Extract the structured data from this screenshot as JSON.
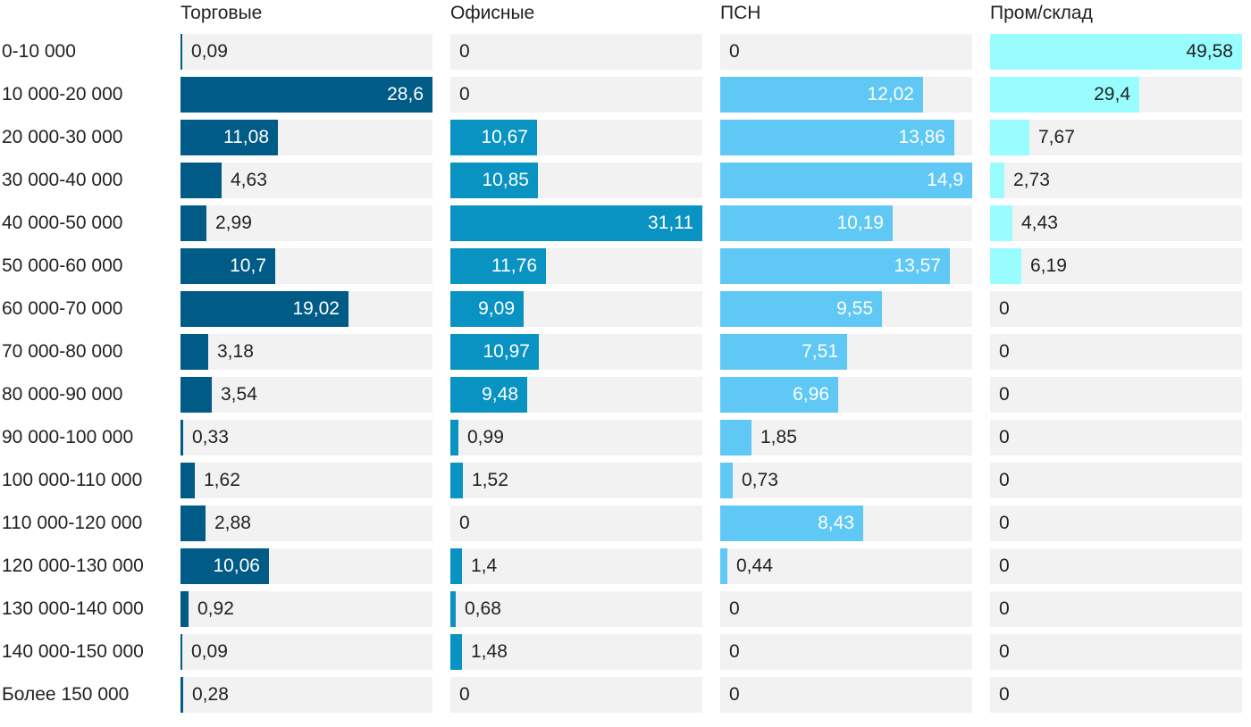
{
  "chart_data": {
    "type": "bar",
    "orientation": "horizontal",
    "layout": "small-multiples",
    "title": "",
    "xlabel": "",
    "ylabel": "",
    "categories": [
      "0-10 000",
      "10 000-20 000",
      "20 000-30 000",
      "30 000-40 000",
      "40 000-50 000",
      "50 000-60 000",
      "60 000-70 000",
      "70 000-80 000",
      "80 000-90 000",
      "90 000-100 000",
      "100 000-110 000",
      "110 000-120 000",
      "120 000-130 000",
      "130 000-140 000",
      "140 000-150 000",
      "Более 150 000"
    ],
    "series": [
      {
        "name": "Торговые",
        "color": "#005b86",
        "max": 28.6,
        "values": [
          0.09,
          28.6,
          11.08,
          4.63,
          2.99,
          10.7,
          19.02,
          3.18,
          3.54,
          0.33,
          1.62,
          2.88,
          10.06,
          0.92,
          0.09,
          0.28
        ],
        "labels": [
          "0,09",
          "28,6",
          "11,08",
          "4,63",
          "2,99",
          "10,7",
          "19,02",
          "3,18",
          "3,54",
          "0,33",
          "1,62",
          "2,88",
          "10,06",
          "0,92",
          "0,09",
          "0,28"
        ]
      },
      {
        "name": "Офисные",
        "color": "#0993c3",
        "max": 31.11,
        "values": [
          0,
          0,
          10.67,
          10.85,
          31.11,
          11.76,
          9.09,
          10.97,
          9.48,
          0.99,
          1.52,
          0,
          1.4,
          0.68,
          1.48,
          0
        ],
        "labels": [
          "0",
          "0",
          "10,67",
          "10,85",
          "31,11",
          "11,76",
          "9,09",
          "10,97",
          "9,48",
          "0,99",
          "1,52",
          "0",
          "1,4",
          "0,68",
          "1,48",
          "0"
        ]
      },
      {
        "name": "ПСН",
        "color": "#5fc8f4",
        "max": 14.9,
        "values": [
          0,
          12.02,
          13.86,
          14.9,
          10.19,
          13.57,
          9.55,
          7.51,
          6.96,
          1.85,
          0.73,
          8.43,
          0.44,
          0,
          0,
          0
        ],
        "labels": [
          "0",
          "12,02",
          "13,86",
          "14,9",
          "10,19",
          "13,57",
          "9,55",
          "7,51",
          "6,96",
          "1,85",
          "0,73",
          "8,43",
          "0,44",
          "0",
          "0",
          "0"
        ]
      },
      {
        "name": "Пром/склад",
        "color": "#99fdff",
        "max": 49.58,
        "values": [
          49.58,
          29.4,
          7.67,
          2.73,
          4.43,
          6.19,
          0,
          0,
          0,
          0,
          0,
          0,
          0,
          0,
          0,
          0
        ],
        "labels": [
          "49,58",
          "29,4",
          "7,67",
          "2,73",
          "4,43",
          "6,19",
          "0",
          "0",
          "0",
          "0",
          "0",
          "0",
          "0",
          "0",
          "0",
          "0"
        ]
      }
    ]
  }
}
